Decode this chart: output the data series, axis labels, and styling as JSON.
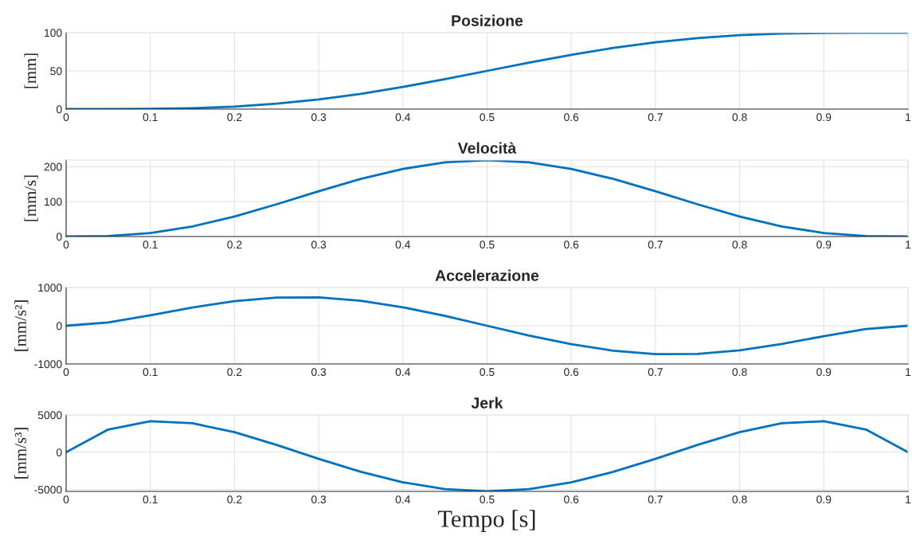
{
  "chart_data": [
    {
      "type": "line",
      "title": "Posizione",
      "ylabel": "[mm]",
      "x": [
        0,
        0.05,
        0.1,
        0.15,
        0.2,
        0.25,
        0.3,
        0.35,
        0.4,
        0.45,
        0.5,
        0.55,
        0.6,
        0.65,
        0.7,
        0.75,
        0.8,
        0.85,
        0.9,
        0.95,
        1
      ],
      "series": [
        {
          "color": "#0072bd",
          "values": [
            0,
            0.02,
            0.27,
            1.2,
            3.3,
            7.1,
            12.6,
            20,
            29,
            39.2,
            50,
            60.8,
            71,
            80,
            87.4,
            92.9,
            96.7,
            98.8,
            99.7,
            99.98,
            100
          ]
        }
      ],
      "xlim": [
        0,
        1
      ],
      "ylim": [
        0,
        100
      ],
      "xticks": [
        0,
        0.1,
        0.2,
        0.3,
        0.4,
        0.5,
        0.6,
        0.7,
        0.8,
        0.9,
        1
      ],
      "yticks": [
        0,
        50,
        100
      ],
      "grid": true
    },
    {
      "type": "line",
      "title": "Velocità",
      "ylabel": "[mm/s]",
      "x": [
        0,
        0.05,
        0.1,
        0.15,
        0.2,
        0.25,
        0.3,
        0.35,
        0.4,
        0.45,
        0.5,
        0.55,
        0.6,
        0.65,
        0.7,
        0.75,
        0.8,
        0.85,
        0.9,
        0.95,
        1
      ],
      "series": [
        {
          "color": "#0072bd",
          "values": [
            0,
            1.5,
            10.2,
            29,
            57.3,
            92.3,
            129.7,
            164.8,
            193.5,
            212,
            218.75,
            212,
            193.5,
            164.8,
            129.7,
            92.3,
            57.3,
            29,
            10.2,
            1.5,
            0
          ]
        }
      ],
      "xlim": [
        0,
        1
      ],
      "ylim": [
        0,
        218.75
      ],
      "xticks": [
        0,
        0.1,
        0.2,
        0.3,
        0.4,
        0.5,
        0.6,
        0.7,
        0.8,
        0.9,
        1
      ],
      "yticks": [
        0,
        100,
        200
      ],
      "grid": true
    },
    {
      "type": "line",
      "title": "Accelerazione",
      "ylabel": "[mm/s²]",
      "x": [
        0,
        0.05,
        0.1,
        0.15,
        0.2,
        0.25,
        0.3,
        0.35,
        0.4,
        0.45,
        0.5,
        0.55,
        0.6,
        0.65,
        0.7,
        0.75,
        0.8,
        0.85,
        0.9,
        0.95,
        1
      ],
      "series": [
        {
          "color": "#0072bd",
          "values": [
            0,
            85,
            272,
            478,
            645,
            738,
            741,
            652,
            484,
            257,
            0,
            -257,
            -484,
            -652,
            -741,
            -738,
            -645,
            -478,
            -272,
            -85,
            0
          ]
        }
      ],
      "xlim": [
        0,
        1
      ],
      "ylim": [
        -1000,
        1000
      ],
      "xticks": [
        0,
        0.1,
        0.2,
        0.3,
        0.4,
        0.5,
        0.6,
        0.7,
        0.8,
        0.9,
        1
      ],
      "yticks": [
        -1000,
        0,
        1000
      ],
      "grid": true
    },
    {
      "type": "line",
      "title": "Jerk",
      "ylabel": "[mm/s³]",
      "xlabel": "Tempo [s]",
      "x": [
        0,
        0.05,
        0.1,
        0.15,
        0.2,
        0.25,
        0.3,
        0.35,
        0.4,
        0.45,
        0.5,
        0.55,
        0.6,
        0.65,
        0.7,
        0.75,
        0.8,
        0.85,
        0.9,
        0.95,
        1
      ],
      "series": [
        {
          "color": "#0072bd",
          "values": [
            0,
            3042,
            4158,
            3882,
            2688,
            984,
            -882,
            -2628,
            -4032,
            -4937,
            -5250,
            -4937,
            -4032,
            -2628,
            -882,
            984,
            2688,
            3882,
            4158,
            3042,
            0
          ]
        }
      ],
      "xlim": [
        0,
        1
      ],
      "ylim": [
        -5250,
        5000
      ],
      "xticks": [
        0,
        0.1,
        0.2,
        0.3,
        0.4,
        0.5,
        0.6,
        0.7,
        0.8,
        0.9,
        1
      ],
      "yticks": [
        -5000,
        0,
        5000
      ],
      "grid": true
    }
  ]
}
